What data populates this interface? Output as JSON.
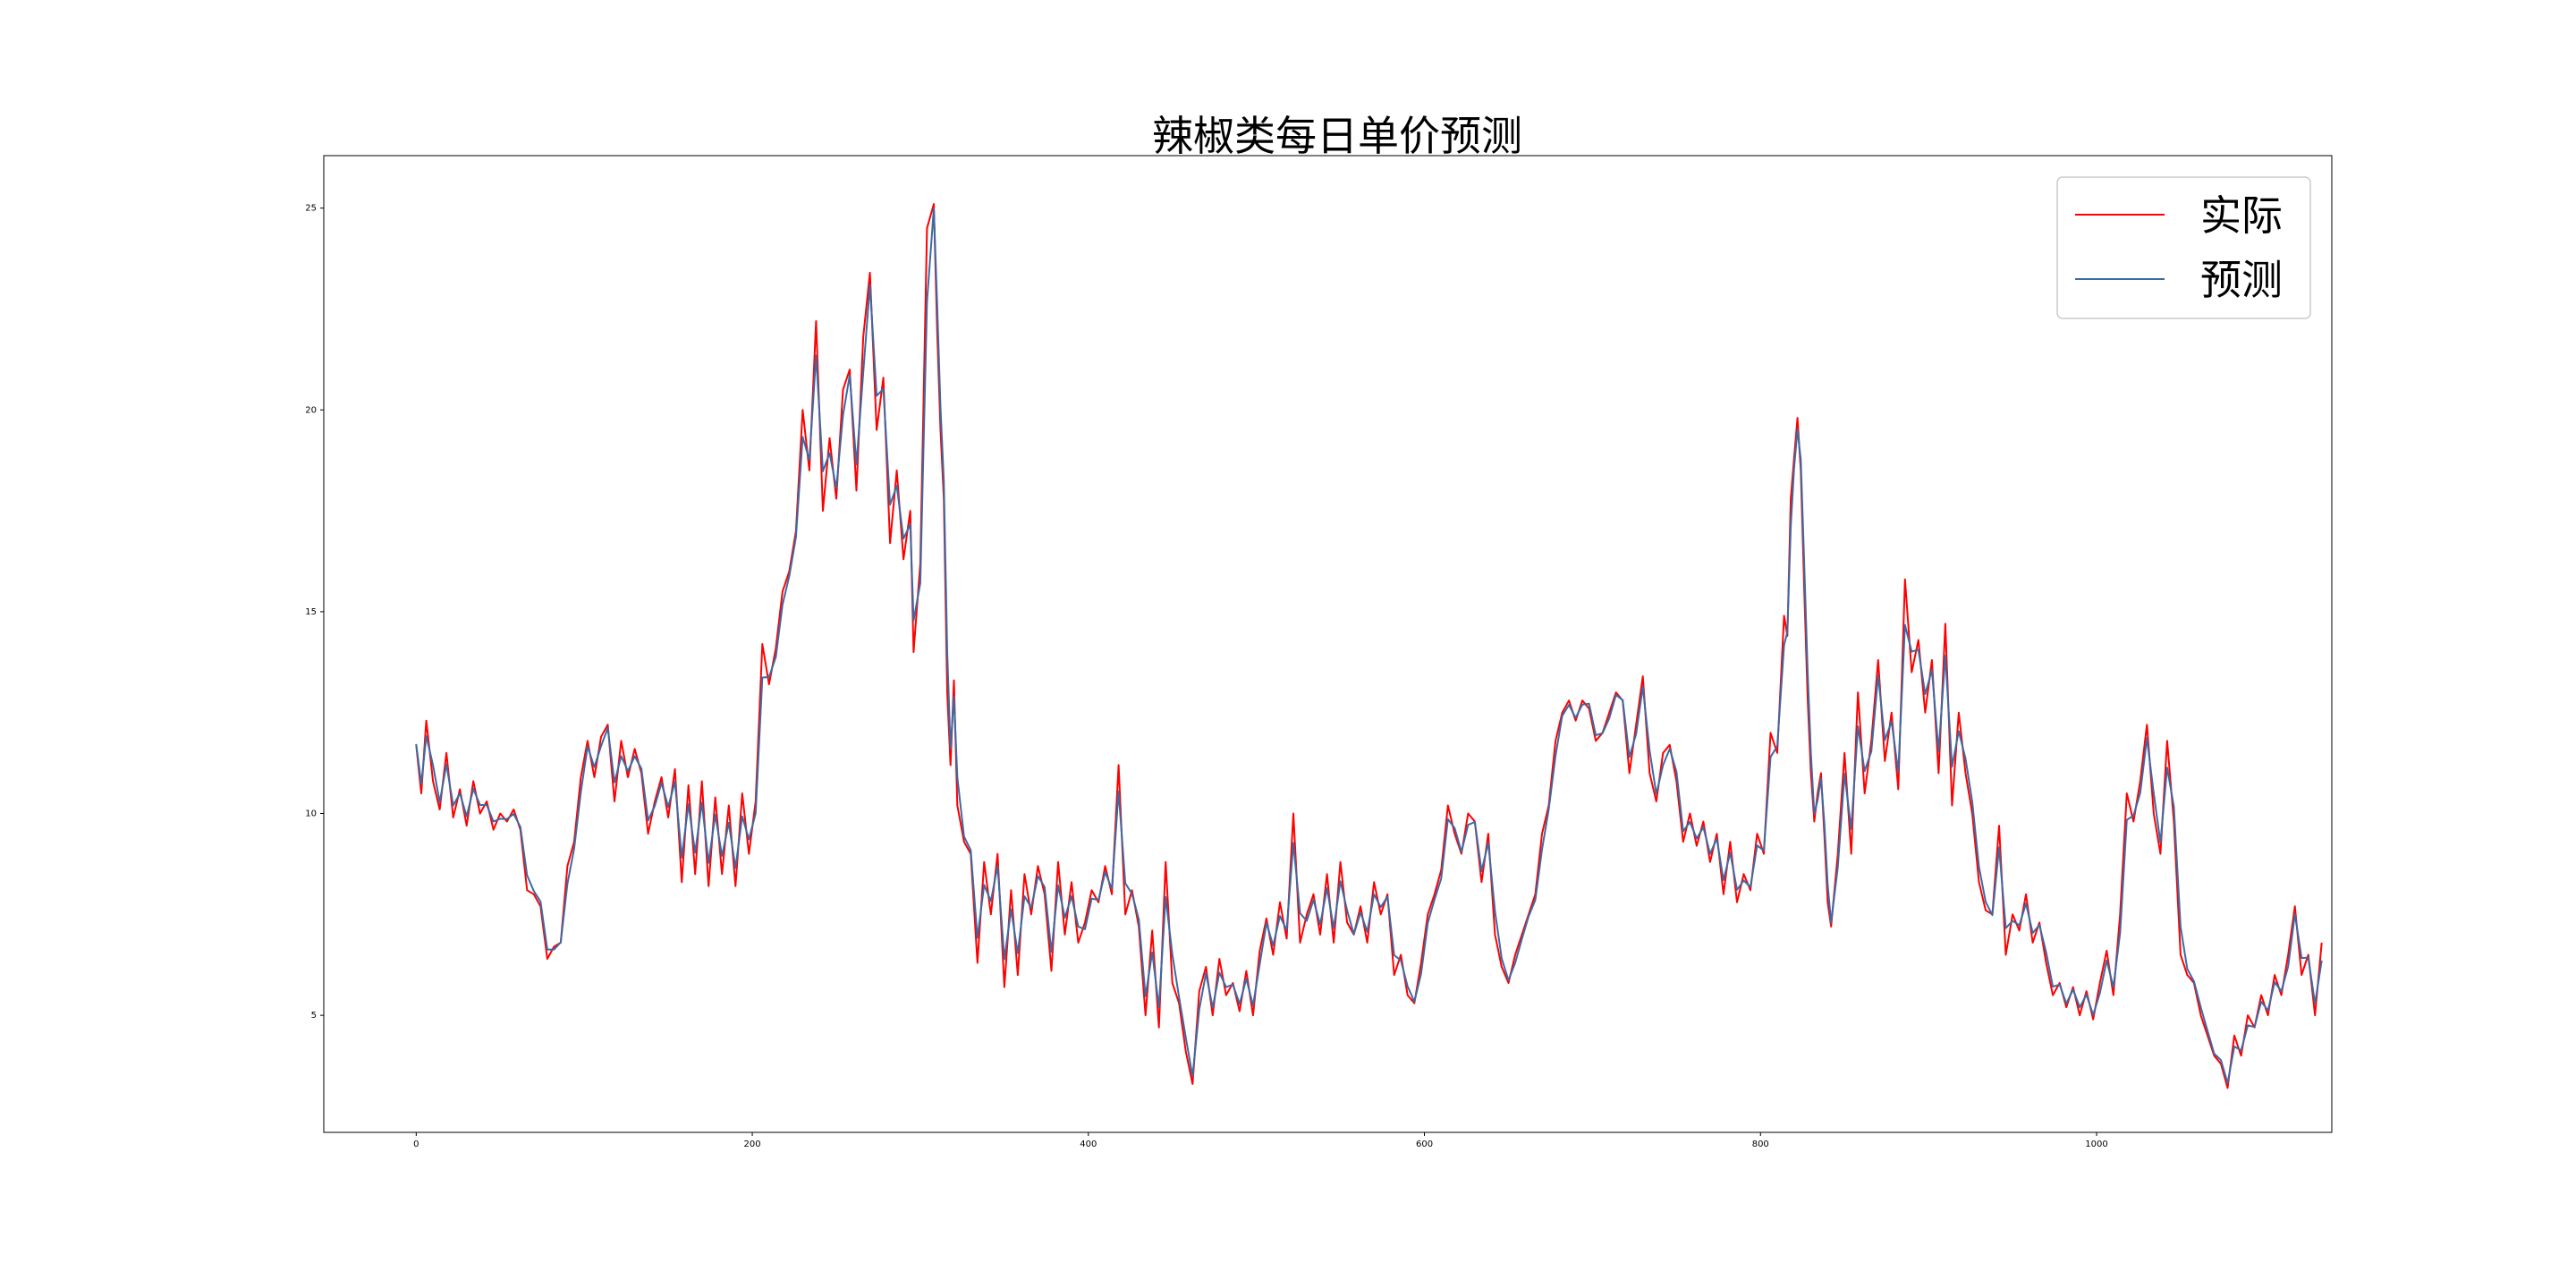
{
  "chart_data": {
    "type": "line",
    "title": "辣椒类每日单价预测",
    "xlabel": "",
    "ylabel": "",
    "xlim": [
      -55,
      1140
    ],
    "ylim": [
      2.1,
      26.3
    ],
    "x_ticks": [
      0,
      200,
      400,
      600,
      800,
      1000
    ],
    "y_ticks": [
      5,
      10,
      15,
      20,
      25
    ],
    "grid": false,
    "legend_position": "upper right",
    "series": [
      {
        "name": "实际",
        "color": "#ff0000",
        "points": [
          [
            0,
            11.7
          ],
          [
            3,
            10.5
          ],
          [
            6,
            12.3
          ],
          [
            10,
            10.8
          ],
          [
            14,
            10.1
          ],
          [
            18,
            11.5
          ],
          [
            22,
            9.9
          ],
          [
            26,
            10.6
          ],
          [
            30,
            9.7
          ],
          [
            34,
            10.8
          ],
          [
            38,
            10.0
          ],
          [
            42,
            10.3
          ],
          [
            46,
            9.6
          ],
          [
            50,
            10.0
          ],
          [
            54,
            9.8
          ],
          [
            58,
            10.1
          ],
          [
            62,
            9.6
          ],
          [
            66,
            8.1
          ],
          [
            70,
            8.0
          ],
          [
            74,
            7.7
          ],
          [
            78,
            6.4
          ],
          [
            82,
            6.7
          ],
          [
            86,
            6.8
          ],
          [
            90,
            8.7
          ],
          [
            94,
            9.3
          ],
          [
            98,
            10.9
          ],
          [
            102,
            11.8
          ],
          [
            106,
            10.9
          ],
          [
            110,
            11.9
          ],
          [
            114,
            12.2
          ],
          [
            118,
            10.3
          ],
          [
            122,
            11.8
          ],
          [
            126,
            10.9
          ],
          [
            130,
            11.6
          ],
          [
            134,
            11.0
          ],
          [
            138,
            9.5
          ],
          [
            142,
            10.3
          ],
          [
            146,
            10.9
          ],
          [
            150,
            9.9
          ],
          [
            154,
            11.1
          ],
          [
            158,
            8.3
          ],
          [
            162,
            10.7
          ],
          [
            166,
            8.5
          ],
          [
            170,
            10.8
          ],
          [
            174,
            8.2
          ],
          [
            178,
            10.4
          ],
          [
            182,
            8.5
          ],
          [
            186,
            10.2
          ],
          [
            190,
            8.2
          ],
          [
            194,
            10.5
          ],
          [
            198,
            9.0
          ],
          [
            202,
            10.3
          ],
          [
            206,
            14.2
          ],
          [
            210,
            13.2
          ],
          [
            214,
            14.1
          ],
          [
            218,
            15.5
          ],
          [
            222,
            16.0
          ],
          [
            226,
            17.0
          ],
          [
            230,
            20.0
          ],
          [
            234,
            18.5
          ],
          [
            238,
            22.2
          ],
          [
            242,
            17.5
          ],
          [
            246,
            19.3
          ],
          [
            250,
            17.8
          ],
          [
            254,
            20.5
          ],
          [
            258,
            21.0
          ],
          [
            262,
            18.0
          ],
          [
            266,
            21.8
          ],
          [
            270,
            23.4
          ],
          [
            274,
            19.5
          ],
          [
            278,
            20.8
          ],
          [
            282,
            16.7
          ],
          [
            286,
            18.5
          ],
          [
            290,
            16.3
          ],
          [
            294,
            17.5
          ],
          [
            296,
            14.0
          ],
          [
            300,
            16.2
          ],
          [
            304,
            24.5
          ],
          [
            308,
            25.1
          ],
          [
            310,
            22.0
          ],
          [
            312,
            19.5
          ],
          [
            314,
            17.8
          ],
          [
            316,
            13.0
          ],
          [
            318,
            11.2
          ],
          [
            320,
            13.3
          ],
          [
            322,
            10.2
          ],
          [
            326,
            9.3
          ],
          [
            330,
            9.0
          ],
          [
            334,
            6.3
          ],
          [
            338,
            8.8
          ],
          [
            342,
            7.5
          ],
          [
            346,
            9.0
          ],
          [
            350,
            5.7
          ],
          [
            354,
            8.1
          ],
          [
            358,
            6.0
          ],
          [
            362,
            8.5
          ],
          [
            366,
            7.5
          ],
          [
            370,
            8.7
          ],
          [
            374,
            8.0
          ],
          [
            378,
            6.1
          ],
          [
            382,
            8.8
          ],
          [
            386,
            7.0
          ],
          [
            390,
            8.3
          ],
          [
            394,
            6.8
          ],
          [
            398,
            7.3
          ],
          [
            402,
            8.1
          ],
          [
            406,
            7.8
          ],
          [
            410,
            8.7
          ],
          [
            414,
            8.0
          ],
          [
            418,
            11.2
          ],
          [
            422,
            7.5
          ],
          [
            426,
            8.1
          ],
          [
            430,
            7.2
          ],
          [
            434,
            5.0
          ],
          [
            438,
            7.1
          ],
          [
            442,
            4.7
          ],
          [
            446,
            8.8
          ],
          [
            450,
            5.8
          ],
          [
            454,
            5.3
          ],
          [
            458,
            4.1
          ],
          [
            462,
            3.3
          ],
          [
            466,
            5.6
          ],
          [
            470,
            6.2
          ],
          [
            474,
            5.0
          ],
          [
            478,
            6.4
          ],
          [
            482,
            5.5
          ],
          [
            486,
            5.8
          ],
          [
            490,
            5.1
          ],
          [
            494,
            6.1
          ],
          [
            498,
            5.0
          ],
          [
            502,
            6.6
          ],
          [
            506,
            7.4
          ],
          [
            510,
            6.5
          ],
          [
            514,
            7.8
          ],
          [
            518,
            6.9
          ],
          [
            522,
            10.0
          ],
          [
            526,
            6.8
          ],
          [
            530,
            7.5
          ],
          [
            534,
            8.0
          ],
          [
            538,
            7.0
          ],
          [
            542,
            8.5
          ],
          [
            546,
            6.8
          ],
          [
            550,
            8.8
          ],
          [
            554,
            7.3
          ],
          [
            558,
            7.0
          ],
          [
            562,
            7.7
          ],
          [
            566,
            6.8
          ],
          [
            570,
            8.3
          ],
          [
            574,
            7.5
          ],
          [
            578,
            8.0
          ],
          [
            582,
            6.0
          ],
          [
            586,
            6.5
          ],
          [
            590,
            5.5
          ],
          [
            594,
            5.3
          ],
          [
            598,
            6.3
          ],
          [
            602,
            7.5
          ],
          [
            606,
            8.0
          ],
          [
            610,
            8.6
          ],
          [
            614,
            10.2
          ],
          [
            618,
            9.5
          ],
          [
            622,
            9.0
          ],
          [
            626,
            10.0
          ],
          [
            630,
            9.8
          ],
          [
            634,
            8.3
          ],
          [
            638,
            9.5
          ],
          [
            642,
            7.0
          ],
          [
            646,
            6.2
          ],
          [
            650,
            5.8
          ],
          [
            654,
            6.5
          ],
          [
            658,
            7.0
          ],
          [
            662,
            7.5
          ],
          [
            666,
            8.0
          ],
          [
            670,
            9.5
          ],
          [
            674,
            10.2
          ],
          [
            678,
            11.8
          ],
          [
            682,
            12.5
          ],
          [
            686,
            12.8
          ],
          [
            690,
            12.3
          ],
          [
            694,
            12.8
          ],
          [
            698,
            12.6
          ],
          [
            702,
            11.8
          ],
          [
            706,
            12.0
          ],
          [
            710,
            12.5
          ],
          [
            714,
            13.0
          ],
          [
            718,
            12.8
          ],
          [
            722,
            11.0
          ],
          [
            726,
            12.2
          ],
          [
            730,
            13.4
          ],
          [
            734,
            11.0
          ],
          [
            738,
            10.3
          ],
          [
            742,
            11.5
          ],
          [
            746,
            11.7
          ],
          [
            750,
            10.8
          ],
          [
            754,
            9.3
          ],
          [
            758,
            10.0
          ],
          [
            762,
            9.2
          ],
          [
            766,
            9.8
          ],
          [
            770,
            8.8
          ],
          [
            774,
            9.5
          ],
          [
            778,
            8.0
          ],
          [
            782,
            9.3
          ],
          [
            786,
            7.8
          ],
          [
            790,
            8.5
          ],
          [
            794,
            8.1
          ],
          [
            798,
            9.5
          ],
          [
            802,
            9.0
          ],
          [
            806,
            12.0
          ],
          [
            810,
            11.5
          ],
          [
            814,
            14.9
          ],
          [
            816,
            14.4
          ],
          [
            818,
            17.8
          ],
          [
            820,
            18.8
          ],
          [
            822,
            19.8
          ],
          [
            824,
            18.5
          ],
          [
            826,
            15.6
          ],
          [
            828,
            12.9
          ],
          [
            830,
            11.0
          ],
          [
            832,
            9.8
          ],
          [
            834,
            10.5
          ],
          [
            836,
            11.0
          ],
          [
            838,
            9.5
          ],
          [
            840,
            7.8
          ],
          [
            842,
            7.2
          ],
          [
            846,
            9.0
          ],
          [
            850,
            11.5
          ],
          [
            854,
            9.0
          ],
          [
            858,
            13.0
          ],
          [
            862,
            10.5
          ],
          [
            866,
            11.8
          ],
          [
            870,
            13.8
          ],
          [
            874,
            11.3
          ],
          [
            878,
            12.5
          ],
          [
            882,
            10.6
          ],
          [
            886,
            15.8
          ],
          [
            890,
            13.5
          ],
          [
            894,
            14.3
          ],
          [
            898,
            12.5
          ],
          [
            902,
            13.8
          ],
          [
            906,
            11.0
          ],
          [
            910,
            14.7
          ],
          [
            914,
            10.2
          ],
          [
            918,
            12.5
          ],
          [
            922,
            11.0
          ],
          [
            926,
            10.0
          ],
          [
            930,
            8.3
          ],
          [
            934,
            7.6
          ],
          [
            938,
            7.5
          ],
          [
            942,
            9.7
          ],
          [
            946,
            6.5
          ],
          [
            950,
            7.5
          ],
          [
            954,
            7.1
          ],
          [
            958,
            8.0
          ],
          [
            962,
            6.8
          ],
          [
            966,
            7.3
          ],
          [
            970,
            6.3
          ],
          [
            974,
            5.5
          ],
          [
            978,
            5.8
          ],
          [
            982,
            5.2
          ],
          [
            986,
            5.7
          ],
          [
            990,
            5.0
          ],
          [
            994,
            5.6
          ],
          [
            998,
            4.9
          ],
          [
            1002,
            5.8
          ],
          [
            1006,
            6.6
          ],
          [
            1010,
            5.5
          ],
          [
            1014,
            7.5
          ],
          [
            1018,
            10.5
          ],
          [
            1022,
            9.8
          ],
          [
            1026,
            10.8
          ],
          [
            1030,
            12.2
          ],
          [
            1034,
            10.0
          ],
          [
            1038,
            9.0
          ],
          [
            1042,
            11.8
          ],
          [
            1046,
            9.8
          ],
          [
            1050,
            6.5
          ],
          [
            1054,
            6.0
          ],
          [
            1058,
            5.8
          ],
          [
            1062,
            5.0
          ],
          [
            1066,
            4.5
          ],
          [
            1070,
            4.0
          ],
          [
            1074,
            3.8
          ],
          [
            1078,
            3.2
          ],
          [
            1082,
            4.5
          ],
          [
            1086,
            4.0
          ],
          [
            1090,
            5.0
          ],
          [
            1094,
            4.7
          ],
          [
            1098,
            5.5
          ],
          [
            1102,
            5.0
          ],
          [
            1106,
            6.0
          ],
          [
            1110,
            5.5
          ],
          [
            1114,
            6.5
          ],
          [
            1118,
            7.7
          ],
          [
            1122,
            6.0
          ],
          [
            1126,
            6.5
          ],
          [
            1130,
            5.0
          ],
          [
            1134,
            6.8
          ]
        ]
      },
      {
        "name": "预测",
        "color": "#3b6ba5",
        "points": []
      }
    ]
  }
}
